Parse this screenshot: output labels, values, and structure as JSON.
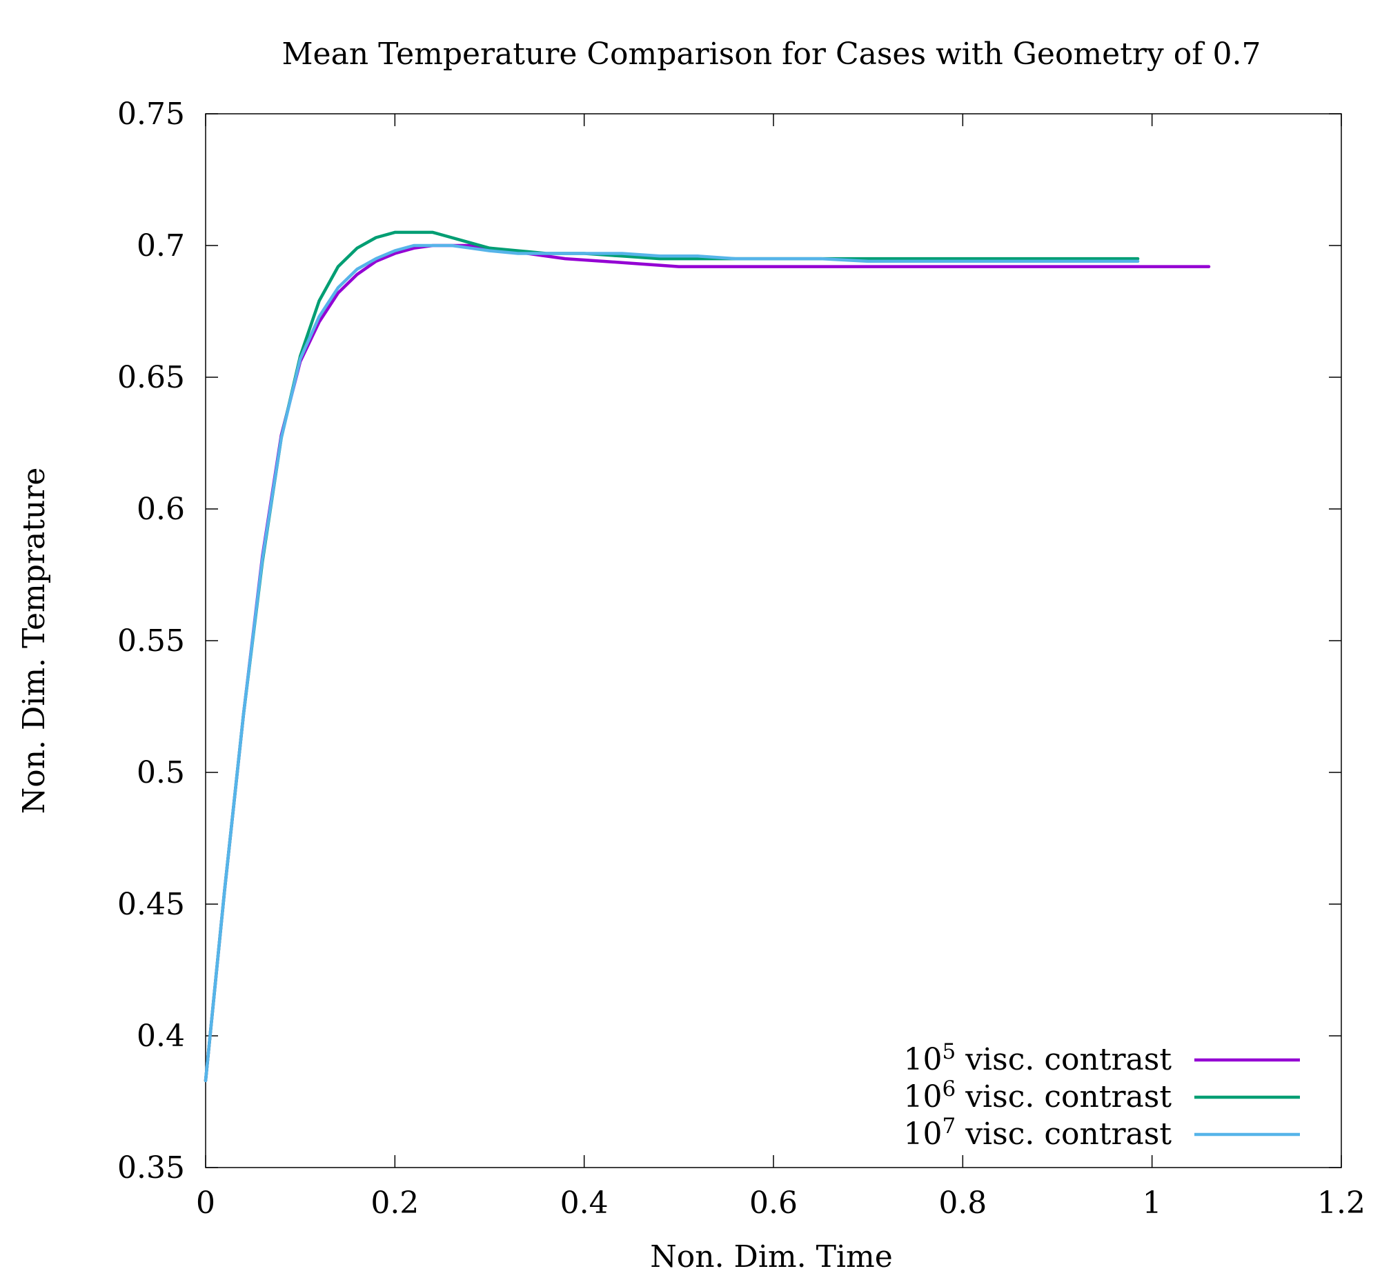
{
  "chart_data": {
    "type": "line",
    "title": "Mean Temperature Comparison for Cases with Geometry of 0.7",
    "xlabel": "Non. Dim. Time",
    "ylabel": "Non. Dim. Temprature",
    "xlim": [
      0,
      1.2
    ],
    "ylim": [
      0.35,
      0.75
    ],
    "xticks": [
      "0",
      "0.2",
      "0.4",
      "0.6",
      "0.8",
      "1",
      "1.2"
    ],
    "yticks": [
      "0.35",
      "0.4",
      "0.45",
      "0.5",
      "0.55",
      "0.6",
      "0.65",
      "0.7",
      "0.75"
    ],
    "grid": false,
    "legend_position": "bottom-right",
    "series": [
      {
        "base": "10",
        "exp": "5",
        "suffix": " visc. contrast",
        "color": "#9400d3",
        "x": [
          0,
          0.02,
          0.04,
          0.06,
          0.08,
          0.1,
          0.12,
          0.14,
          0.16,
          0.18,
          0.2,
          0.22,
          0.24,
          0.26,
          0.28,
          0.3,
          0.34,
          0.38,
          0.42,
          0.46,
          0.5,
          0.55,
          0.6,
          0.65,
          0.7,
          0.75,
          0.8,
          0.85,
          0.9,
          0.95,
          1.0,
          1.06
        ],
        "y": [
          0.383,
          0.455,
          0.522,
          0.582,
          0.628,
          0.656,
          0.671,
          0.682,
          0.689,
          0.694,
          0.697,
          0.699,
          0.7,
          0.7,
          0.7,
          0.699,
          0.697,
          0.695,
          0.694,
          0.693,
          0.692,
          0.692,
          0.692,
          0.692,
          0.692,
          0.692,
          0.692,
          0.692,
          0.692,
          0.692,
          0.692,
          0.692
        ]
      },
      {
        "base": "10",
        "exp": "6",
        "suffix": " visc. contrast",
        "color": "#009e73",
        "x": [
          0,
          0.02,
          0.04,
          0.06,
          0.08,
          0.1,
          0.12,
          0.14,
          0.16,
          0.18,
          0.2,
          0.22,
          0.24,
          0.26,
          0.28,
          0.3,
          0.33,
          0.36,
          0.4,
          0.44,
          0.48,
          0.52,
          0.56,
          0.6,
          0.65,
          0.7,
          0.75,
          0.8,
          0.85,
          0.9,
          0.95,
          0.985
        ],
        "y": [
          0.383,
          0.455,
          0.522,
          0.58,
          0.627,
          0.658,
          0.679,
          0.692,
          0.699,
          0.703,
          0.705,
          0.705,
          0.705,
          0.703,
          0.701,
          0.699,
          0.698,
          0.697,
          0.697,
          0.696,
          0.695,
          0.695,
          0.695,
          0.695,
          0.695,
          0.695,
          0.695,
          0.695,
          0.695,
          0.695,
          0.695,
          0.695
        ]
      },
      {
        "base": "10",
        "exp": "7",
        "suffix": " visc. contrast",
        "color": "#56b4e9",
        "x": [
          0,
          0.02,
          0.04,
          0.06,
          0.08,
          0.1,
          0.12,
          0.14,
          0.16,
          0.18,
          0.2,
          0.22,
          0.24,
          0.26,
          0.28,
          0.3,
          0.33,
          0.36,
          0.4,
          0.44,
          0.48,
          0.52,
          0.56,
          0.6,
          0.65,
          0.7,
          0.75,
          0.8,
          0.85,
          0.9,
          0.95,
          0.985
        ],
        "y": [
          0.383,
          0.455,
          0.522,
          0.581,
          0.627,
          0.657,
          0.673,
          0.684,
          0.691,
          0.695,
          0.698,
          0.7,
          0.7,
          0.7,
          0.699,
          0.698,
          0.697,
          0.697,
          0.697,
          0.697,
          0.696,
          0.696,
          0.695,
          0.695,
          0.695,
          0.694,
          0.694,
          0.694,
          0.694,
          0.694,
          0.694,
          0.694
        ]
      }
    ]
  }
}
